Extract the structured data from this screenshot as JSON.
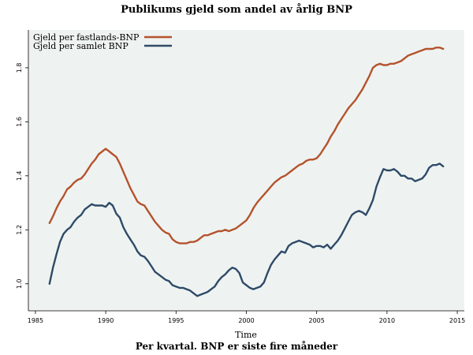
{
  "chart_data": {
    "type": "line",
    "title": "Publikums gjeld som andel av årlig BNP",
    "xlabel": "Time",
    "caption": "Per kvartal. BNP er siste fire måneder",
    "ylabel": "",
    "xlim": [
      1984.5,
      2015.5
    ],
    "ylim": [
      0.9,
      1.94
    ],
    "x_ticks": [
      1985,
      1990,
      1995,
      2000,
      2005,
      2010,
      2015
    ],
    "x_tick_labels": [
      "1985",
      "1990",
      "1995",
      "2000",
      "2005",
      "2010",
      "2015"
    ],
    "y_ticks": [
      1.0,
      1.2,
      1.4,
      1.6,
      1.8
    ],
    "y_tick_labels": [
      "1.0",
      "1.2",
      "1.4",
      "1.6",
      "1.8"
    ],
    "grid": false,
    "legend": {
      "position": "top-left"
    },
    "colors": {
      "panel_bg": "#eef3f1",
      "series_fastland": "#b5532c",
      "series_total": "#2f4a68"
    },
    "series": [
      {
        "name": "Gjeld per fastlands-BNP",
        "color": "#b5532c",
        "x": [
          1986.0,
          1986.25,
          1986.5,
          1986.75,
          1987.0,
          1987.25,
          1987.5,
          1987.75,
          1988.0,
          1988.25,
          1988.5,
          1988.75,
          1989.0,
          1989.25,
          1989.5,
          1989.75,
          1990.0,
          1990.25,
          1990.5,
          1990.75,
          1991.0,
          1991.25,
          1991.5,
          1991.75,
          1992.0,
          1992.25,
          1992.5,
          1992.75,
          1993.0,
          1993.25,
          1993.5,
          1993.75,
          1994.0,
          1994.25,
          1994.5,
          1994.75,
          1995.0,
          1995.25,
          1995.5,
          1995.75,
          1996.0,
          1996.25,
          1996.5,
          1996.75,
          1997.0,
          1997.25,
          1997.5,
          1997.75,
          1998.0,
          1998.25,
          1998.5,
          1998.75,
          1999.0,
          1999.25,
          1999.5,
          1999.75,
          2000.0,
          2000.25,
          2000.5,
          2000.75,
          2001.0,
          2001.25,
          2001.5,
          2001.75,
          2002.0,
          2002.25,
          2002.5,
          2002.75,
          2003.0,
          2003.25,
          2003.5,
          2003.75,
          2004.0,
          2004.25,
          2004.5,
          2004.75,
          2005.0,
          2005.25,
          2005.5,
          2005.75,
          2006.0,
          2006.25,
          2006.5,
          2006.75,
          2007.0,
          2007.25,
          2007.5,
          2007.75,
          2008.0,
          2008.25,
          2008.5,
          2008.75,
          2009.0,
          2009.25,
          2009.5,
          2009.75,
          2010.0,
          2010.25,
          2010.5,
          2010.75,
          2011.0,
          2011.25,
          2011.5,
          2011.75,
          2012.0,
          2012.25,
          2012.5,
          2012.75,
          2013.0,
          2013.25,
          2013.5,
          2013.75,
          2014.0
        ],
        "values": [
          1.225,
          1.25,
          1.28,
          1.305,
          1.325,
          1.35,
          1.36,
          1.375,
          1.385,
          1.39,
          1.405,
          1.425,
          1.445,
          1.46,
          1.48,
          1.49,
          1.5,
          1.49,
          1.48,
          1.47,
          1.445,
          1.415,
          1.385,
          1.355,
          1.33,
          1.305,
          1.295,
          1.29,
          1.27,
          1.25,
          1.23,
          1.215,
          1.2,
          1.19,
          1.185,
          1.165,
          1.155,
          1.15,
          1.15,
          1.15,
          1.155,
          1.155,
          1.16,
          1.17,
          1.18,
          1.18,
          1.185,
          1.19,
          1.195,
          1.195,
          1.2,
          1.195,
          1.2,
          1.205,
          1.215,
          1.225,
          1.235,
          1.255,
          1.28,
          1.3,
          1.315,
          1.33,
          1.345,
          1.36,
          1.375,
          1.385,
          1.395,
          1.4,
          1.41,
          1.42,
          1.43,
          1.44,
          1.445,
          1.455,
          1.46,
          1.46,
          1.465,
          1.48,
          1.5,
          1.52,
          1.545,
          1.565,
          1.59,
          1.61,
          1.63,
          1.65,
          1.665,
          1.68,
          1.7,
          1.72,
          1.745,
          1.77,
          1.8,
          1.81,
          1.815,
          1.81,
          1.81,
          1.815,
          1.815,
          1.82,
          1.825,
          1.835,
          1.845,
          1.85,
          1.855,
          1.86,
          1.865,
          1.87,
          1.87,
          1.87,
          1.875,
          1.875,
          1.87
        ]
      },
      {
        "name": "Gjeld per samlet BNP",
        "color": "#2f4a68",
        "x": [
          1986.0,
          1986.25,
          1986.5,
          1986.75,
          1987.0,
          1987.25,
          1987.5,
          1987.75,
          1988.0,
          1988.25,
          1988.5,
          1988.75,
          1989.0,
          1989.25,
          1989.5,
          1989.75,
          1990.0,
          1990.25,
          1990.5,
          1990.75,
          1991.0,
          1991.25,
          1991.5,
          1991.75,
          1992.0,
          1992.25,
          1992.5,
          1992.75,
          1993.0,
          1993.25,
          1993.5,
          1993.75,
          1994.0,
          1994.25,
          1994.5,
          1994.75,
          1995.0,
          1995.25,
          1995.5,
          1995.75,
          1996.0,
          1996.25,
          1996.5,
          1996.75,
          1997.0,
          1997.25,
          1997.5,
          1997.75,
          1998.0,
          1998.25,
          1998.5,
          1998.75,
          1999.0,
          1999.25,
          1999.5,
          1999.75,
          2000.0,
          2000.25,
          2000.5,
          2000.75,
          2001.0,
          2001.25,
          2001.5,
          2001.75,
          2002.0,
          2002.25,
          2002.5,
          2002.75,
          2003.0,
          2003.25,
          2003.5,
          2003.75,
          2004.0,
          2004.25,
          2004.5,
          2004.75,
          2005.0,
          2005.25,
          2005.5,
          2005.75,
          2006.0,
          2006.25,
          2006.5,
          2006.75,
          2007.0,
          2007.25,
          2007.5,
          2007.75,
          2008.0,
          2008.25,
          2008.5,
          2008.75,
          2009.0,
          2009.25,
          2009.5,
          2009.75,
          2010.0,
          2010.25,
          2010.5,
          2010.75,
          2011.0,
          2011.25,
          2011.5,
          2011.75,
          2012.0,
          2012.25,
          2012.5,
          2012.75,
          2013.0,
          2013.25,
          2013.5,
          2013.75,
          2014.0
        ],
        "values": [
          1.0,
          1.06,
          1.11,
          1.155,
          1.185,
          1.2,
          1.21,
          1.23,
          1.245,
          1.255,
          1.275,
          1.285,
          1.295,
          1.29,
          1.29,
          1.29,
          1.285,
          1.3,
          1.29,
          1.26,
          1.245,
          1.21,
          1.185,
          1.165,
          1.145,
          1.12,
          1.105,
          1.1,
          1.085,
          1.065,
          1.045,
          1.035,
          1.025,
          1.015,
          1.01,
          0.995,
          0.99,
          0.985,
          0.985,
          0.98,
          0.975,
          0.965,
          0.955,
          0.96,
          0.965,
          0.97,
          0.98,
          0.99,
          1.01,
          1.025,
          1.035,
          1.05,
          1.06,
          1.055,
          1.04,
          1.005,
          0.995,
          0.985,
          0.98,
          0.985,
          0.99,
          1.005,
          1.04,
          1.07,
          1.09,
          1.105,
          1.12,
          1.115,
          1.14,
          1.15,
          1.155,
          1.16,
          1.155,
          1.15,
          1.145,
          1.135,
          1.14,
          1.14,
          1.135,
          1.145,
          1.13,
          1.145,
          1.16,
          1.18,
          1.205,
          1.23,
          1.255,
          1.265,
          1.27,
          1.265,
          1.255,
          1.28,
          1.31,
          1.36,
          1.395,
          1.425,
          1.42,
          1.42,
          1.425,
          1.415,
          1.4,
          1.4,
          1.39,
          1.39,
          1.38,
          1.385,
          1.39,
          1.405,
          1.43,
          1.44,
          1.44,
          1.445,
          1.435
        ]
      }
    ]
  }
}
